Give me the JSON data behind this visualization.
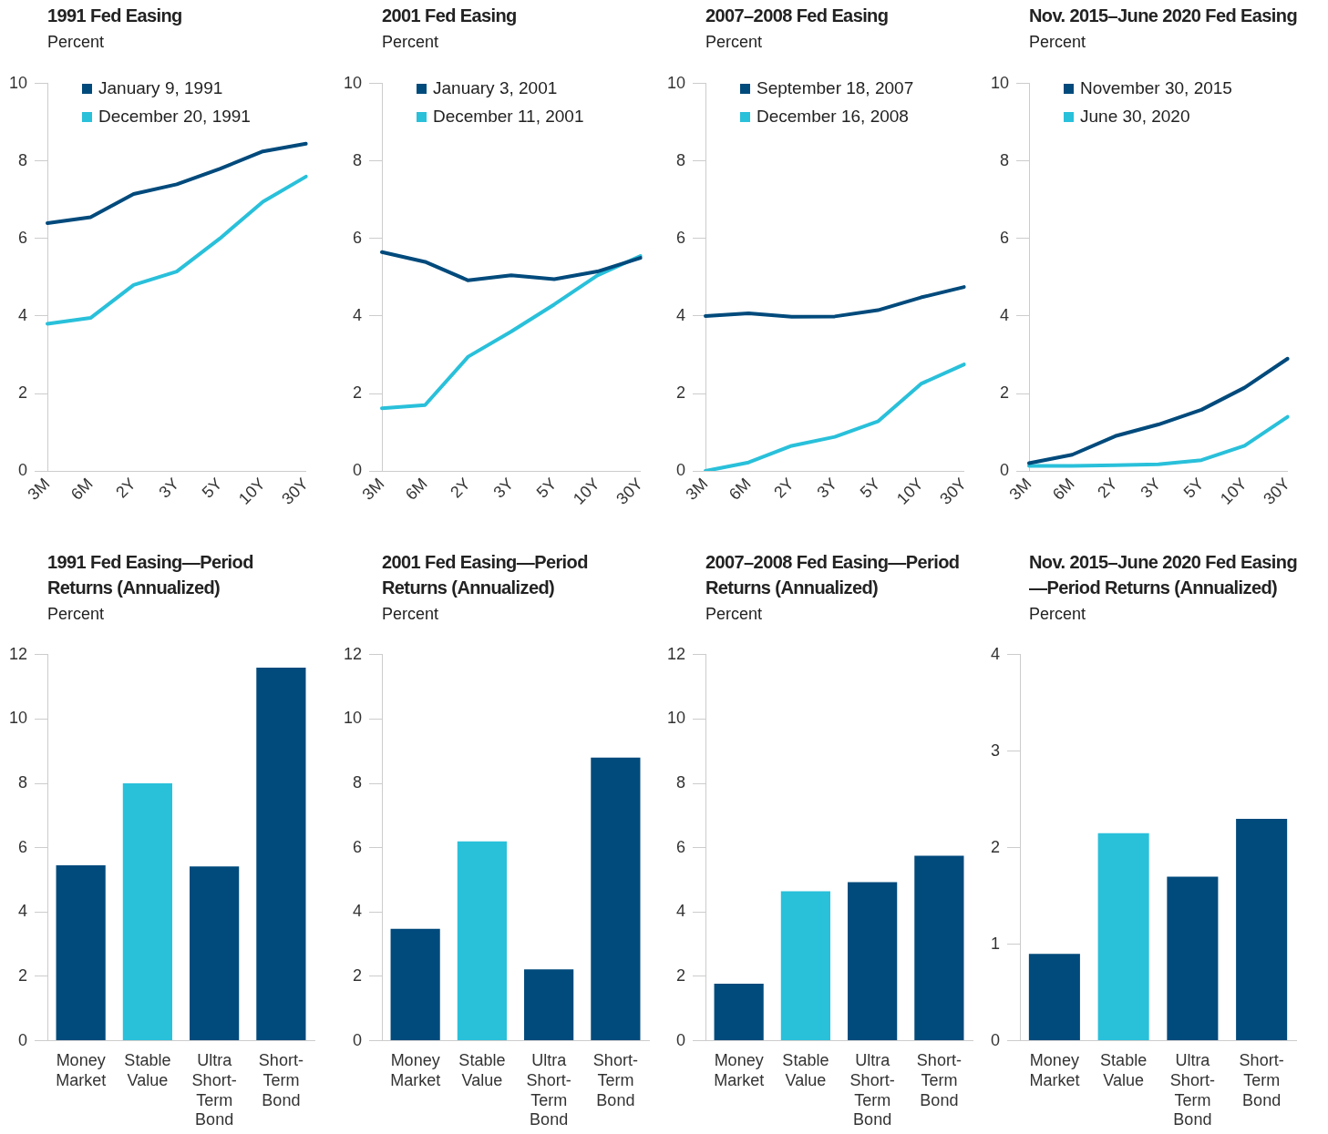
{
  "chart_data": [
    {
      "type": "line",
      "title": "1991 Fed Easing",
      "subtitle": "Percent",
      "categories": [
        "3M",
        "6M",
        "2Y",
        "3Y",
        "5Y",
        "10Y",
        "30Y"
      ],
      "ylim": [
        0,
        10
      ],
      "yticks": [
        0,
        2,
        4,
        6,
        8,
        10
      ],
      "legend": "top left",
      "series": [
        {
          "name": "January 9, 1991",
          "color": "#004a7c",
          "values": [
            6.4,
            6.55,
            7.15,
            7.4,
            7.8,
            8.25,
            8.45
          ]
        },
        {
          "name": "December 20, 1991",
          "color": "#29c0da",
          "values": [
            3.8,
            3.95,
            4.8,
            5.15,
            6.0,
            6.95,
            7.6
          ]
        }
      ]
    },
    {
      "type": "line",
      "title": "2001 Fed Easing",
      "subtitle": "Percent",
      "categories": [
        "3M",
        "6M",
        "2Y",
        "3Y",
        "5Y",
        "10Y",
        "30Y"
      ],
      "ylim": [
        0,
        10
      ],
      "yticks": [
        0,
        2,
        4,
        6,
        8,
        10
      ],
      "legend": "top left",
      "series": [
        {
          "name": "January 3, 2001",
          "color": "#004a7c",
          "values": [
            5.65,
            5.4,
            4.92,
            5.05,
            4.95,
            5.15,
            5.5
          ]
        },
        {
          "name": "December 11, 2001",
          "color": "#29c0da",
          "values": [
            1.62,
            1.7,
            2.95,
            3.6,
            4.3,
            5.05,
            5.55
          ]
        }
      ]
    },
    {
      "type": "line",
      "title": "2007–2008 Fed Easing",
      "subtitle": "Percent",
      "categories": [
        "3M",
        "6M",
        "2Y",
        "3Y",
        "5Y",
        "10Y",
        "30Y"
      ],
      "ylim": [
        0,
        10
      ],
      "yticks": [
        0,
        2,
        4,
        6,
        8,
        10
      ],
      "legend": "top left",
      "series": [
        {
          "name": "September 18, 2007",
          "color": "#004a7c",
          "values": [
            4.0,
            4.07,
            3.98,
            3.99,
            4.15,
            4.48,
            4.75
          ]
        },
        {
          "name": "December 16, 2008",
          "color": "#29c0da",
          "values": [
            0.0,
            0.22,
            0.65,
            0.88,
            1.28,
            2.25,
            2.75
          ]
        }
      ]
    },
    {
      "type": "line",
      "title": "Nov. 2015–June 2020 Fed Easing",
      "subtitle": "Percent",
      "categories": [
        "3M",
        "6M",
        "2Y",
        "3Y",
        "5Y",
        "10Y",
        "30Y"
      ],
      "ylim": [
        0,
        10
      ],
      "yticks": [
        0,
        2,
        4,
        6,
        8,
        10
      ],
      "legend": "top left",
      "series": [
        {
          "name": "November 30, 2015",
          "color": "#004a7c",
          "values": [
            0.2,
            0.42,
            0.9,
            1.2,
            1.58,
            2.15,
            2.9
          ]
        },
        {
          "name": "June 30, 2020",
          "color": "#29c0da",
          "values": [
            0.13,
            0.13,
            0.15,
            0.17,
            0.28,
            0.65,
            1.4
          ]
        }
      ]
    },
    {
      "type": "bar",
      "title": "1991 Fed Easing—Period Returns (Annualized)",
      "subtitle": "Percent",
      "categories": [
        "Money Market",
        "Stable Value",
        "Ultra Short-Term Bond",
        "Short-Term Bond"
      ],
      "values": [
        5.45,
        8.0,
        5.42,
        11.6
      ],
      "colors": [
        "#004a7c",
        "#29c0da",
        "#004a7c",
        "#004a7c"
      ],
      "ylim": [
        0,
        12
      ],
      "yticks": [
        0,
        2,
        4,
        6,
        8,
        10,
        12
      ]
    },
    {
      "type": "bar",
      "title": "2001 Fed Easing—Period Returns (Annualized)",
      "subtitle": "Percent",
      "categories": [
        "Money Market",
        "Stable Value",
        "Ultra Short-Term Bond",
        "Short-Term Bond"
      ],
      "values": [
        3.48,
        6.2,
        2.22,
        8.8
      ],
      "colors": [
        "#004a7c",
        "#29c0da",
        "#004a7c",
        "#004a7c"
      ],
      "ylim": [
        0,
        12
      ],
      "yticks": [
        0,
        2,
        4,
        6,
        8,
        10,
        12
      ]
    },
    {
      "type": "bar",
      "title": "2007–2008 Fed Easing—Period Returns (Annualized)",
      "subtitle": "Percent",
      "categories": [
        "Money Market",
        "Stable Value",
        "Ultra Short-Term Bond",
        "Short-Term Bond"
      ],
      "values": [
        1.77,
        4.65,
        4.93,
        5.75
      ],
      "colors": [
        "#004a7c",
        "#29c0da",
        "#004a7c",
        "#004a7c"
      ],
      "ylim": [
        0,
        12
      ],
      "yticks": [
        0,
        2,
        4,
        6,
        8,
        10,
        12
      ]
    },
    {
      "type": "bar",
      "title": "Nov. 2015–June 2020 Fed Easing—Period Returns (Annualized)",
      "subtitle": "Percent",
      "categories": [
        "Money Market",
        "Stable Value",
        "Ultra Short-Term Bond",
        "Short-Term Bond"
      ],
      "values": [
        0.9,
        2.15,
        1.7,
        2.3
      ],
      "colors": [
        "#004a7c",
        "#29c0da",
        "#004a7c",
        "#004a7c"
      ],
      "ylim": [
        0,
        4
      ],
      "yticks": [
        0,
        1,
        2,
        3,
        4
      ]
    }
  ]
}
